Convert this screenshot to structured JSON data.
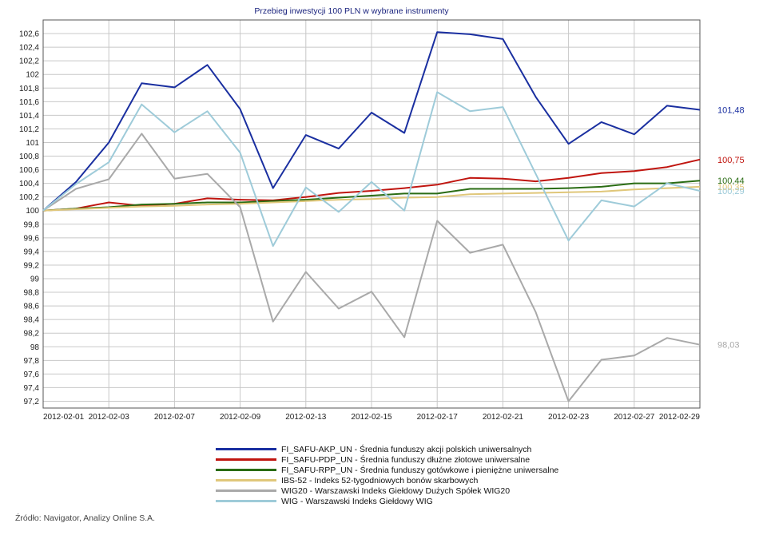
{
  "chart_data": {
    "type": "line",
    "title": "Przebieg inwestycji 100 PLN w wybrane instrumenty",
    "xlabel": "",
    "ylabel": "",
    "x_tick_labels": [
      "2012-02-01",
      "2012-02-03",
      "2012-02-07",
      "2012-02-09",
      "2012-02-13",
      "2012-02-15",
      "2012-02-17",
      "2012-02-21",
      "2012-02-23",
      "2012-02-27",
      "2012-02-29"
    ],
    "y_tick_labels": [
      "97,2",
      "97,4",
      "97,6",
      "97,8",
      "98",
      "98,2",
      "98,4",
      "98,6",
      "98,8",
      "99",
      "99,2",
      "99,4",
      "99,6",
      "99,8",
      "100",
      "100,2",
      "100,4",
      "100,6",
      "100,8",
      "101",
      "101,2",
      "101,4",
      "101,6",
      "101,8",
      "102",
      "102,2",
      "102,4",
      "102,6"
    ],
    "ylim": [
      97.1,
      102.8
    ],
    "grid": true,
    "legend_position": "bottom",
    "x": [
      "2012-02-01",
      "2012-02-02",
      "2012-02-03",
      "2012-02-06",
      "2012-02-07",
      "2012-02-08",
      "2012-02-09",
      "2012-02-10",
      "2012-02-13",
      "2012-02-14",
      "2012-02-15",
      "2012-02-16",
      "2012-02-17",
      "2012-02-20",
      "2012-02-21",
      "2012-02-22",
      "2012-02-23",
      "2012-02-24",
      "2012-02-27",
      "2012-02-28",
      "2012-02-29"
    ],
    "series": [
      {
        "name": "FI_SAFU-AKP_UN - Średnia funduszy akcji polskich uniwersalnych",
        "color": "#1a2fa0",
        "values": [
          100,
          100.42,
          101.0,
          101.87,
          101.81,
          102.14,
          101.49,
          100.33,
          101.11,
          100.91,
          101.44,
          101.14,
          102.62,
          102.59,
          102.52,
          101.67,
          100.98,
          101.3,
          101.12,
          101.54,
          101.48
        ],
        "end_label": "101,48"
      },
      {
        "name": "FI_SAFU-PDP_UN - Średnia funduszy dłużne złotowe uniwersalne",
        "color": "#c0150f",
        "values": [
          100,
          100.03,
          100.12,
          100.07,
          100.1,
          100.18,
          100.16,
          100.15,
          100.2,
          100.26,
          100.29,
          100.33,
          100.38,
          100.48,
          100.47,
          100.43,
          100.48,
          100.55,
          100.58,
          100.64,
          100.75
        ],
        "end_label": "100,75"
      },
      {
        "name": "FI_SAFU-RPP_UN - Średnia funduszy gotówkowe i pieniężne uniwersalne",
        "color": "#2a6c14",
        "values": [
          100,
          100.03,
          100.05,
          100.09,
          100.1,
          100.12,
          100.12,
          100.14,
          100.16,
          100.19,
          100.22,
          100.25,
          100.25,
          100.32,
          100.32,
          100.32,
          100.33,
          100.35,
          100.4,
          100.4,
          100.44
        ],
        "end_label": "100,44"
      },
      {
        "name": "IBS-52 - Indeks 52-tygodniowych bonów skarbowych",
        "color": "#e0c77a",
        "values": [
          100,
          100.02,
          100.04,
          100.06,
          100.07,
          100.09,
          100.1,
          100.12,
          100.14,
          100.16,
          100.17,
          100.19,
          100.2,
          100.24,
          100.25,
          100.26,
          100.27,
          100.28,
          100.31,
          100.33,
          100.35
        ],
        "end_label": "100,35"
      },
      {
        "name": "WIG20 - Warszawski Indeks Giełdowy Dużych Spółek WIG20",
        "color": "#a9a9a9",
        "values": [
          100,
          100.32,
          100.46,
          101.13,
          100.47,
          100.54,
          100.05,
          98.37,
          99.1,
          98.56,
          98.81,
          98.14,
          99.85,
          99.38,
          99.5,
          98.51,
          97.2,
          97.81,
          97.87,
          98.13,
          98.03
        ],
        "end_label": "98,03"
      },
      {
        "name": "WIG - Warszawski Indeks Giełdowy WIG",
        "color": "#9ecbd9",
        "values": [
          100,
          100.39,
          100.71,
          101.56,
          101.15,
          101.46,
          100.85,
          99.48,
          100.34,
          99.98,
          100.42,
          100.0,
          101.74,
          101.46,
          101.52,
          100.54,
          99.56,
          100.15,
          100.06,
          100.4,
          100.29
        ],
        "end_label": "100,29"
      }
    ]
  },
  "footer": {
    "source": "Źródło: Navigator, Analizy Online S.A."
  }
}
